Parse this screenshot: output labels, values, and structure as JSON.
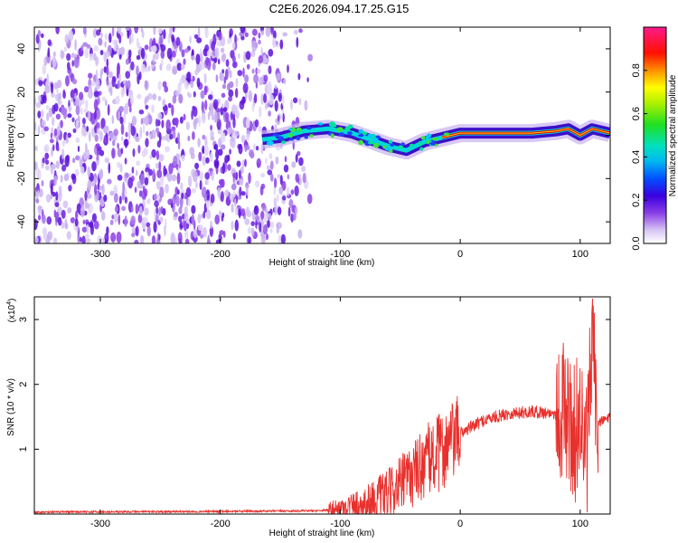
{
  "figure_title": "C2E6.2026.094.17.25.G15",
  "colors": {
    "snr_line": "#e8302c",
    "ridge_low": "#3a10c8",
    "ridge_mid": "#00d8d8",
    "ridge_high": "#e00000"
  },
  "chart_data": [
    {
      "type": "heatmap",
      "xlabel": "Height of straight line (km)",
      "ylabel": "Frequency (Hz)",
      "xlim": [
        -355,
        125
      ],
      "ylim": [
        -50,
        50
      ],
      "x_ticks": [
        -300,
        -200,
        -100,
        0,
        100
      ],
      "y_ticks": [
        -40,
        -20,
        0,
        20,
        40
      ],
      "grid": false,
      "noise_region_x": [
        -355,
        -125
      ],
      "ridge": {
        "x": [
          -165,
          -150,
          -130,
          -110,
          -90,
          -75,
          -60,
          -45,
          -30,
          -15,
          0,
          20,
          40,
          60,
          80,
          90,
          100,
          110,
          125
        ],
        "frequency": [
          -2,
          -1,
          2,
          3,
          1,
          -2,
          -5,
          -7,
          -3,
          -1,
          1,
          1,
          1,
          1,
          2,
          3,
          0,
          3,
          1
        ]
      },
      "colorbar": {
        "label": "Normalized spectral amplitude",
        "range": [
          0,
          1
        ],
        "ticks": [
          0.0,
          0.2,
          0.4,
          0.6,
          0.8
        ],
        "tick_labels": [
          "0.0",
          "0.2",
          "0.4",
          "0.6",
          "0.8"
        ]
      }
    },
    {
      "type": "line",
      "xlabel": "Height of straight line (km)",
      "ylabel": "SNR (10 * v/v)",
      "y_multiplier": "(x10",
      "y_multiplier_exp": "4",
      "y_multiplier_close": ")",
      "xlim": [
        -355,
        125
      ],
      "ylim": [
        0,
        3.35
      ],
      "x_ticks": [
        -300,
        -200,
        -100,
        0,
        100
      ],
      "y_ticks": [
        1,
        2,
        3
      ],
      "grid": false,
      "series": [
        {
          "x": [
            -355,
            -200,
            -120,
            -100,
            -80,
            -60,
            -50,
            -40,
            -30,
            -20,
            -10,
            0,
            20,
            40,
            60,
            80,
            85,
            90,
            95,
            100,
            105,
            110,
            115,
            125
          ],
          "values": [
            0.03,
            0.04,
            0.05,
            0.08,
            0.15,
            0.3,
            0.45,
            0.6,
            0.8,
            0.9,
            1.05,
            1.25,
            1.45,
            1.55,
            1.58,
            1.55,
            1.6,
            1.5,
            1.2,
            1.6,
            0.8,
            2.5,
            1.4,
            1.5
          ]
        }
      ]
    }
  ]
}
